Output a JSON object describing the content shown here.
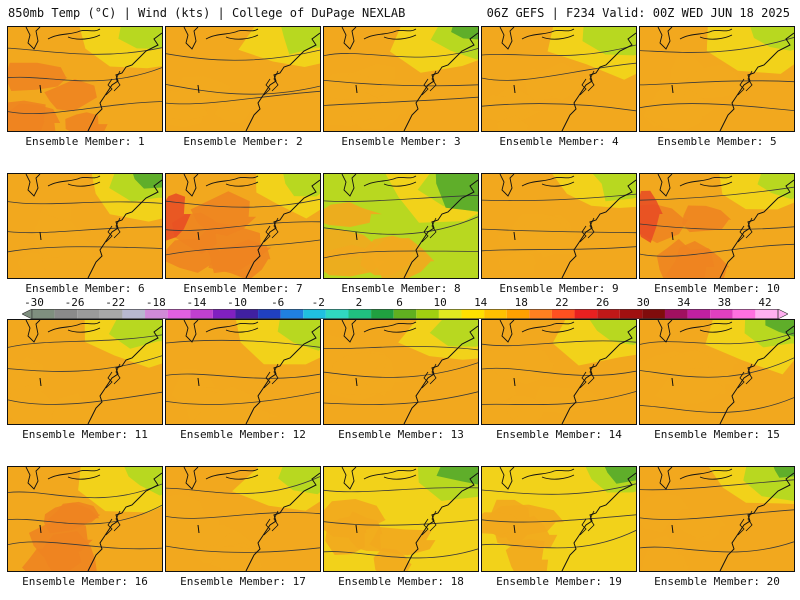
{
  "header": {
    "left": "850mb Temp (°C) | Wind (kts) | College of DuPage NEXLAB",
    "right": "06Z GEFS | F234 Valid: 00Z WED JUN 18 2025"
  },
  "member_label_prefix": "Ensemble Member:",
  "members": [
    {
      "id": "1",
      "warmth": 0.62
    },
    {
      "id": "2",
      "warmth": 0.55
    },
    {
      "id": "3",
      "warmth": 0.45
    },
    {
      "id": "4",
      "warmth": 0.5
    },
    {
      "id": "5",
      "warmth": 0.58
    },
    {
      "id": "6",
      "warmth": 0.45
    },
    {
      "id": "7",
      "warmth": 0.72
    },
    {
      "id": "8",
      "warmth": 0.18
    },
    {
      "id": "9",
      "warmth": 0.6
    },
    {
      "id": "10",
      "warmth": 0.68
    },
    {
      "id": "11",
      "warmth": 0.5
    },
    {
      "id": "12",
      "warmth": 0.5
    },
    {
      "id": "13",
      "warmth": 0.55
    },
    {
      "id": "14",
      "warmth": 0.52
    },
    {
      "id": "15",
      "warmth": 0.45
    },
    {
      "id": "16",
      "warmth": 0.62
    },
    {
      "id": "17",
      "warmth": 0.58
    },
    {
      "id": "18",
      "warmth": 0.35
    },
    {
      "id": "19",
      "warmth": 0.42
    },
    {
      "id": "20",
      "warmth": 0.48
    }
  ],
  "colorbar": {
    "labels": [
      "-30",
      "-26",
      "-22",
      "-18",
      "-14",
      "-10",
      "-6",
      "-2",
      "2",
      "6",
      "10",
      "14",
      "18",
      "22",
      "26",
      "30",
      "34",
      "38",
      "42"
    ],
    "colors": [
      "#7f8f7f",
      "#8a8a8a",
      "#9a9a9a",
      "#a8a8a8",
      "#b8b8d0",
      "#d08ad8",
      "#e060e0",
      "#c040d0",
      "#8020c0",
      "#4020a0",
      "#2040c0",
      "#2080e0",
      "#20c0e0",
      "#30d8c0",
      "#20c080",
      "#20a040",
      "#60b020",
      "#a0d010",
      "#e0e820",
      "#ffe000",
      "#ffc000",
      "#ffa000",
      "#ff8020",
      "#ff5020",
      "#e82020",
      "#c01818",
      "#a01010",
      "#800c0c",
      "#a01060",
      "#c020a0",
      "#e040c0",
      "#ff70e0",
      "#ffb0f0"
    ]
  },
  "palette": {
    "green": "#5fae2a",
    "yellowgreen": "#b8d820",
    "yellow": "#f2d21a",
    "orange": "#f2a81e",
    "darkorange": "#ee8420",
    "red": "#e84a24",
    "contour": "#3a3a3a",
    "coast": "#111111"
  }
}
